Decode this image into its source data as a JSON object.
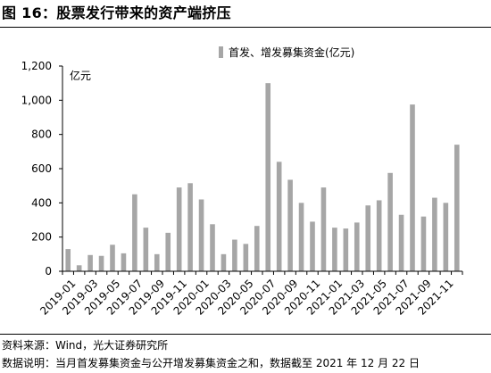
{
  "header": {
    "title": "图 16：股票发行带来的资产端挤压"
  },
  "footer": {
    "source": "资料来源：Wind，光大证券研究所",
    "note": "数据说明：当月首发募集资金与公开增发募集资金之和，数据截至 2021 年 12 月 22 日"
  },
  "colors": {
    "bar": "#a6a6a6",
    "axis": "#000000"
  },
  "chart_data": {
    "type": "bar",
    "title": "",
    "xlabel": "",
    "ylabel": "",
    "unit_label": "亿元",
    "legend": {
      "label": "首发、增发募集资金(亿元)",
      "position": "top-right"
    },
    "grid": false,
    "ylim": [
      0,
      1200
    ],
    "yticks": [
      0,
      200,
      400,
      600,
      800,
      1000,
      1200
    ],
    "ytick_labels": [
      "0",
      "200",
      "400",
      "600",
      "800",
      "1,000",
      "1,200"
    ],
    "categories": [
      "2019-01",
      "2019-02",
      "2019-03",
      "2019-04",
      "2019-05",
      "2019-06",
      "2019-07",
      "2019-08",
      "2019-09",
      "2019-10",
      "2019-11",
      "2019-12",
      "2020-01",
      "2020-02",
      "2020-03",
      "2020-04",
      "2020-05",
      "2020-06",
      "2020-07",
      "2020-08",
      "2020-09",
      "2020-10",
      "2020-11",
      "2020-12",
      "2021-01",
      "2021-02",
      "2021-03",
      "2021-04",
      "2021-05",
      "2021-06",
      "2021-07",
      "2021-08",
      "2021-09",
      "2021-10",
      "2021-11",
      "2021-12"
    ],
    "xtick_labels": [
      "2019-01",
      "2019-03",
      "2019-05",
      "2019-07",
      "2019-09",
      "2019-11",
      "2020-01",
      "2020-03",
      "2020-05",
      "2020-07",
      "2020-09",
      "2020-11",
      "2021-01",
      "2021-03",
      "2021-05",
      "2021-07",
      "2021-09",
      "2021-11"
    ],
    "series": [
      {
        "name": "首发、增发募集资金(亿元)",
        "values": [
          130,
          35,
          95,
          90,
          155,
          105,
          450,
          255,
          100,
          225,
          490,
          515,
          420,
          275,
          100,
          185,
          160,
          265,
          1100,
          640,
          535,
          400,
          290,
          490,
          255,
          250,
          285,
          385,
          415,
          575,
          330,
          975,
          320,
          430,
          400,
          740
        ]
      }
    ]
  }
}
